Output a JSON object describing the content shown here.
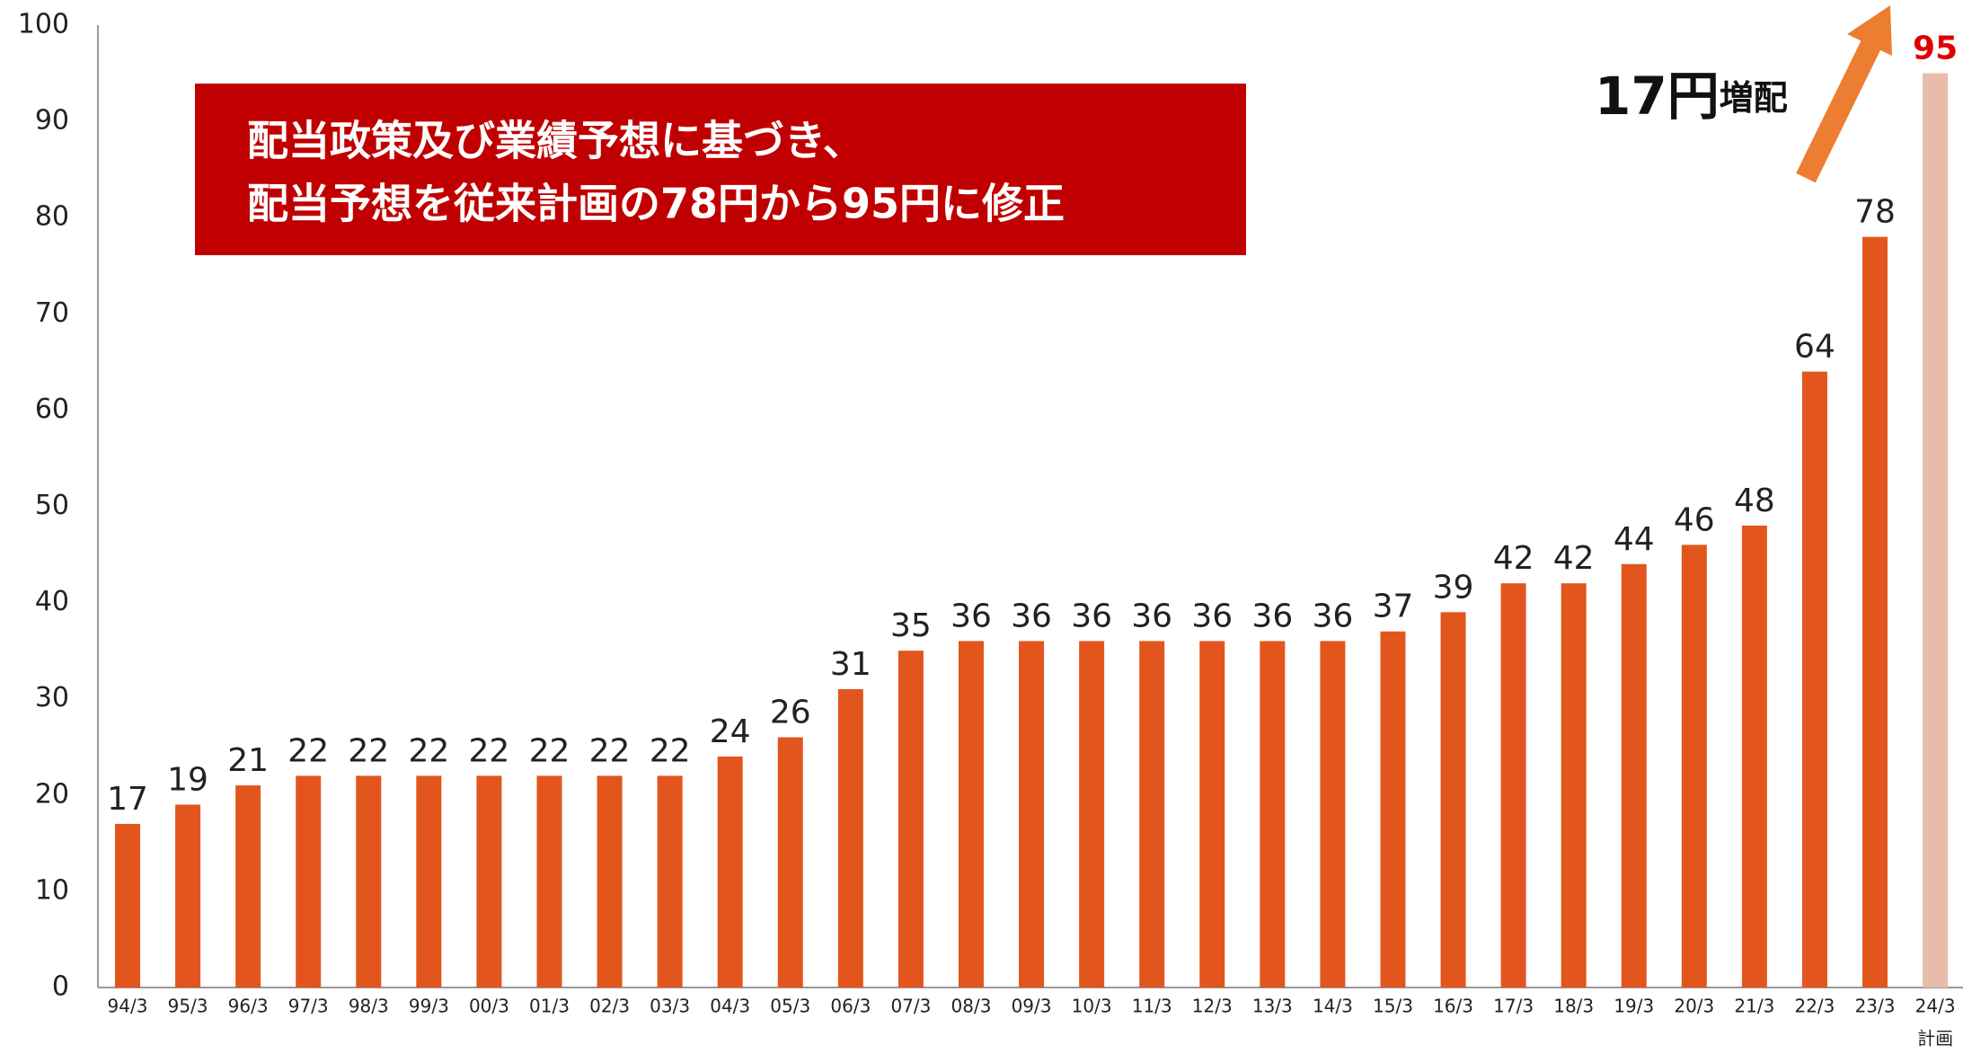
{
  "chart_data": {
    "type": "bar",
    "callout": [
      "配当政策及び業績予想に基づき、",
      "配当予想を従来計画の78円から95円に修正"
    ],
    "increase_label": {
      "amount": "17円",
      "suffix": "増配"
    },
    "categories": [
      "94/3",
      "95/3",
      "96/3",
      "97/3",
      "98/3",
      "99/3",
      "00/3",
      "01/3",
      "02/3",
      "03/3",
      "04/3",
      "05/3",
      "06/3",
      "07/3",
      "08/3",
      "09/3",
      "10/3",
      "11/3",
      "12/3",
      "13/3",
      "14/3",
      "15/3",
      "16/3",
      "17/3",
      "18/3",
      "19/3",
      "20/3",
      "21/3",
      "22/3",
      "23/3",
      "24/3"
    ],
    "category_note": "計画",
    "values": [
      17,
      19,
      21,
      22,
      22,
      22,
      22,
      22,
      22,
      22,
      24,
      26,
      31,
      35,
      36,
      36,
      36,
      36,
      36,
      36,
      36,
      37,
      39,
      42,
      42,
      44,
      46,
      48,
      64,
      78,
      95
    ],
    "colors": [
      "#e2561e",
      "#e2561e",
      "#e2561e",
      "#e2561e",
      "#e2561e",
      "#e2561e",
      "#e2561e",
      "#e2561e",
      "#e2561e",
      "#e2561e",
      "#e2561e",
      "#e2561e",
      "#e2561e",
      "#e2561e",
      "#e2561e",
      "#e2561e",
      "#e2561e",
      "#e2561e",
      "#e2561e",
      "#e2561e",
      "#e2561e",
      "#e2561e",
      "#e2561e",
      "#e2561e",
      "#e2561e",
      "#e2561e",
      "#e2561e",
      "#e2561e",
      "#e2561e",
      "#e2561e",
      "#e8bcaa"
    ],
    "value_label_colors": [
      "#222",
      "#222",
      "#222",
      "#222",
      "#222",
      "#222",
      "#222",
      "#222",
      "#222",
      "#222",
      "#222",
      "#222",
      "#222",
      "#222",
      "#222",
      "#222",
      "#222",
      "#222",
      "#222",
      "#222",
      "#222",
      "#222",
      "#222",
      "#222",
      "#222",
      "#222",
      "#222",
      "#222",
      "#222",
      "#222",
      "#e00000"
    ],
    "ylim": [
      0,
      100
    ],
    "yticks": [
      0,
      10,
      20,
      30,
      40,
      50,
      60,
      70,
      80,
      90,
      100
    ],
    "grid": false
  }
}
